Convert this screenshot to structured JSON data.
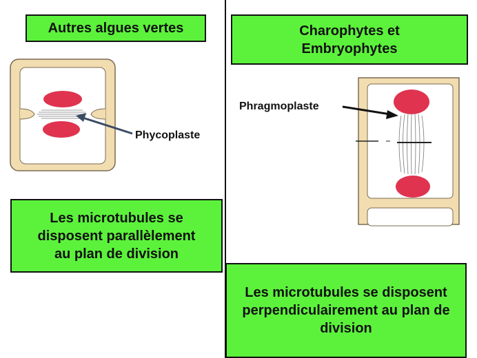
{
  "left": {
    "title": "Autres algues vertes",
    "label": "Phycoplaste",
    "description": "Les microtubules se disposent parallèlement au plan de division"
  },
  "right": {
    "title_line1": "Charophytes et",
    "title_line2": "Embryophytes",
    "label": "Phragmoplaste",
    "description": "Les microtubules se disposent perpendiculairement au plan de division"
  },
  "colors": {
    "box_fill": "#5cf23c",
    "nucleus": "#e0334f",
    "cell_wall": "#f1ddb0",
    "arrow_left": "#3b4a63",
    "arrow_right": "#111111"
  }
}
